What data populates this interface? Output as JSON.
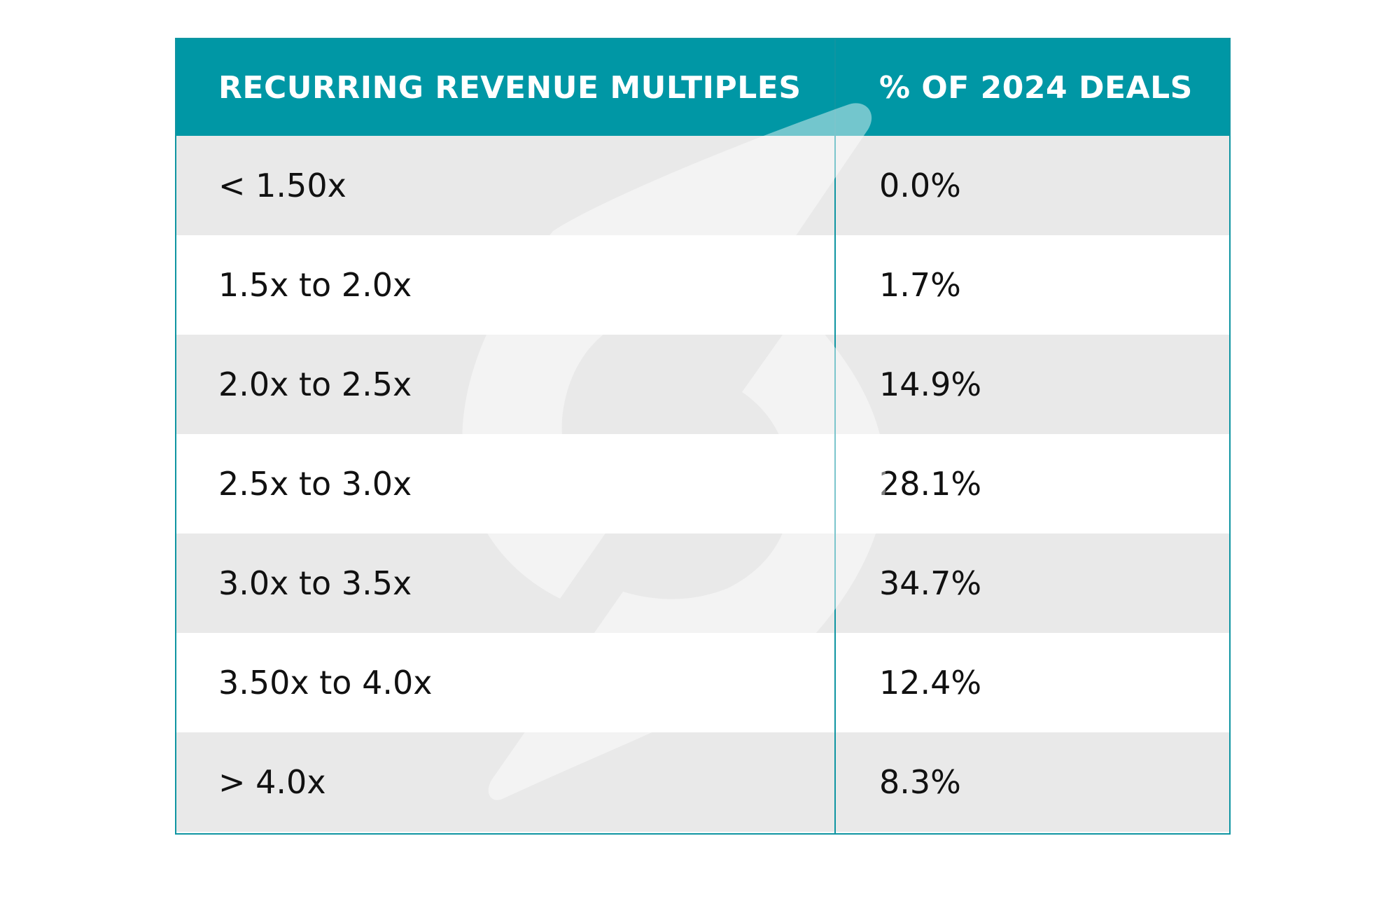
{
  "table": {
    "header": {
      "col1": "RECURRING REVENUE MULTIPLES",
      "col2": "% OF 2024 DEALS"
    },
    "rows": [
      {
        "range": "< 1.50x",
        "percent": "0.0%"
      },
      {
        "range": "1.5x to 2.0x",
        "percent": "1.7%"
      },
      {
        "range": "2.0x to 2.5x",
        "percent": "14.9%"
      },
      {
        "range": "2.5x to 3.0x",
        "percent": "28.1%"
      },
      {
        "range": "3.0x to 3.5x",
        "percent": "34.7%"
      },
      {
        "range": "3.50x to 4.0x",
        "percent": "12.4%"
      },
      {
        "range": "> 4.0x",
        "percent": "8.3%"
      }
    ]
  },
  "colors": {
    "header_bg": "#0097a5",
    "border": "#0f95a2",
    "shaded_row": "#e9e9e9",
    "plain_row": "#ffffff"
  },
  "watermark": {
    "icon": "logo-watermark-icon"
  }
}
